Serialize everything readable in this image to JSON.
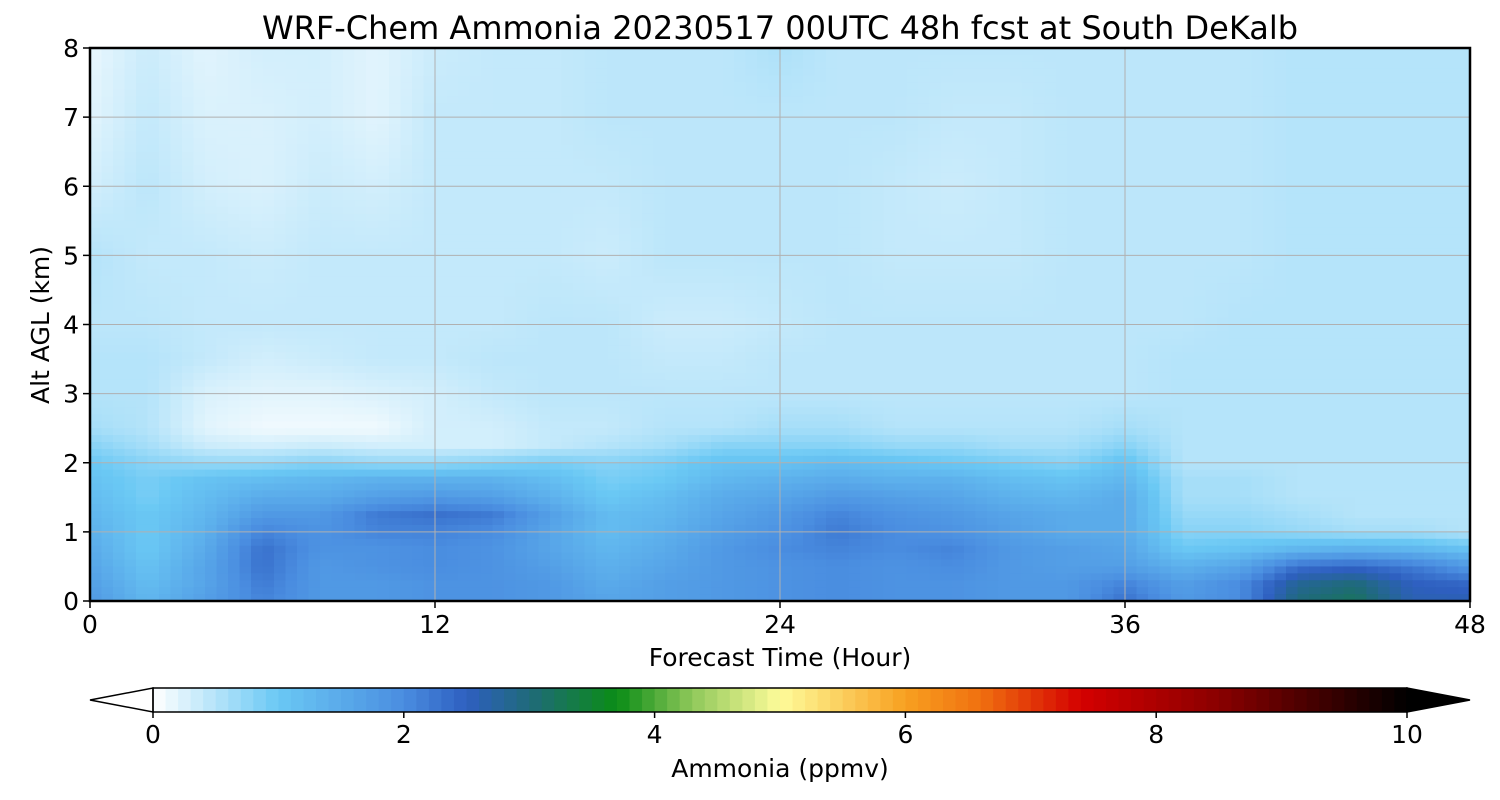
{
  "chart_data": {
    "type": "heatmap",
    "title": "WRF-Chem Ammonia  20230517 00UTC 48h fcst at South DeKalb",
    "xlabel": "Forecast Time (Hour)",
    "ylabel": "Alt AGL (km)",
    "xlim": [
      0,
      48
    ],
    "ylim": [
      0,
      8
    ],
    "x_ticks": [
      "0",
      "12",
      "24",
      "36",
      "48"
    ],
    "y_ticks": [
      "0",
      "1",
      "2",
      "3",
      "4",
      "5",
      "6",
      "7",
      "8"
    ],
    "grid": true,
    "colorbar": {
      "label": "Ammonia  (ppmv)",
      "range": [
        0,
        10
      ],
      "extend": "both",
      "ticks": [
        "0",
        "2",
        "4",
        "6",
        "8",
        "10"
      ],
      "color_stops": [
        {
          "v": 0.0,
          "c": "#ffffff"
        },
        {
          "v": 1.0,
          "c": "#6ac8f4"
        },
        {
          "v": 2.0,
          "c": "#4a8de0"
        },
        {
          "v": 2.5,
          "c": "#2e5fc0"
        },
        {
          "v": 3.0,
          "c": "#1f6a7a"
        },
        {
          "v": 3.7,
          "c": "#0a8c16"
        },
        {
          "v": 4.3,
          "c": "#8fc85a"
        },
        {
          "v": 5.0,
          "c": "#fefc9a"
        },
        {
          "v": 6.0,
          "c": "#f8a020"
        },
        {
          "v": 6.6,
          "c": "#f07010"
        },
        {
          "v": 7.4,
          "c": "#d40000"
        },
        {
          "v": 8.5,
          "c": "#8a0000"
        },
        {
          "v": 10.0,
          "c": "#000000"
        }
      ]
    },
    "x": [
      0,
      2,
      4,
      6,
      8,
      10,
      12,
      14,
      16,
      18,
      20,
      22,
      24,
      26,
      28,
      30,
      32,
      34,
      36,
      38,
      40,
      42,
      44,
      46,
      48
    ],
    "y": [
      0,
      0.25,
      0.5,
      0.75,
      1,
      1.25,
      1.5,
      1.75,
      2,
      2.25,
      2.5,
      3,
      3.5,
      4,
      5,
      6,
      7,
      8
    ],
    "z": [
      [
        1.8,
        1.3,
        1.7,
        2.1,
        1.8,
        1.8,
        1.9,
        1.9,
        1.8,
        1.6,
        1.7,
        1.8,
        1.9,
        2.0,
        1.9,
        1.9,
        1.8,
        1.8,
        2.3,
        1.8,
        2.0,
        3.0,
        3.2,
        2.6,
        2.6
      ],
      [
        1.7,
        1.2,
        1.6,
        2.2,
        1.8,
        1.8,
        1.9,
        1.9,
        1.8,
        1.5,
        1.7,
        1.8,
        1.9,
        2.0,
        1.9,
        1.9,
        1.8,
        1.8,
        2.1,
        1.7,
        2.0,
        2.8,
        3.0,
        2.5,
        2.4
      ],
      [
        1.6,
        1.1,
        1.6,
        2.3,
        1.8,
        1.9,
        2.0,
        1.9,
        1.7,
        1.4,
        1.6,
        1.8,
        1.9,
        2.0,
        1.9,
        2.0,
        1.8,
        1.7,
        1.7,
        1.4,
        1.6,
        2.3,
        2.4,
        2.2,
        1.8
      ],
      [
        1.5,
        1.0,
        1.5,
        2.3,
        1.9,
        1.9,
        2.0,
        1.9,
        1.6,
        1.3,
        1.5,
        1.8,
        2.0,
        2.1,
        2.0,
        2.1,
        1.8,
        1.7,
        1.6,
        1.0,
        1.1,
        1.3,
        1.4,
        1.3,
        1.1
      ],
      [
        1.4,
        1.0,
        1.4,
        2.1,
        1.9,
        2.1,
        2.1,
        2.0,
        1.6,
        1.2,
        1.4,
        1.7,
        1.9,
        2.2,
        2.0,
        1.9,
        1.7,
        1.5,
        1.5,
        0.8,
        0.8,
        0.7,
        0.6,
        0.6,
        0.5
      ],
      [
        1.3,
        1.0,
        1.3,
        1.8,
        1.8,
        2.2,
        2.3,
        2.2,
        1.7,
        1.2,
        1.3,
        1.6,
        1.8,
        2.1,
        1.9,
        1.8,
        1.6,
        1.5,
        1.5,
        0.7,
        0.7,
        0.6,
        0.5,
        0.5,
        0.5
      ],
      [
        1.2,
        0.9,
        1.2,
        1.5,
        1.5,
        1.7,
        1.8,
        1.7,
        1.4,
        1.0,
        1.2,
        1.5,
        1.6,
        1.8,
        1.7,
        1.6,
        1.4,
        1.3,
        1.5,
        0.6,
        0.6,
        0.5,
        0.5,
        0.5,
        0.5
      ],
      [
        1.1,
        0.9,
        1.1,
        1.2,
        1.3,
        1.4,
        1.4,
        1.4,
        1.2,
        0.9,
        1.0,
        1.3,
        1.4,
        1.5,
        1.4,
        1.4,
        1.2,
        1.1,
        1.3,
        0.6,
        0.6,
        0.5,
        0.5,
        0.5,
        0.5
      ],
      [
        1.0,
        0.8,
        0.7,
        0.7,
        0.8,
        0.7,
        0.7,
        0.8,
        0.9,
        0.8,
        0.9,
        1.1,
        1.1,
        1.2,
        1.1,
        1.0,
        0.9,
        0.8,
        1.1,
        0.5,
        0.5,
        0.5,
        0.5,
        0.5,
        0.5
      ],
      [
        0.8,
        0.6,
        0.35,
        0.3,
        0.35,
        0.3,
        0.3,
        0.3,
        0.4,
        0.5,
        0.6,
        0.8,
        0.8,
        0.8,
        0.7,
        0.7,
        0.6,
        0.6,
        0.8,
        0.5,
        0.5,
        0.5,
        0.5,
        0.5,
        0.5
      ],
      [
        0.6,
        0.5,
        0.2,
        0.1,
        0.1,
        0.1,
        0.3,
        0.3,
        0.4,
        0.4,
        0.5,
        0.5,
        0.6,
        0.6,
        0.5,
        0.5,
        0.5,
        0.5,
        0.6,
        0.5,
        0.5,
        0.5,
        0.5,
        0.5,
        0.5
      ],
      [
        0.5,
        0.5,
        0.25,
        0.2,
        0.2,
        0.25,
        0.3,
        0.4,
        0.45,
        0.45,
        0.45,
        0.45,
        0.45,
        0.45,
        0.45,
        0.45,
        0.45,
        0.45,
        0.45,
        0.5,
        0.5,
        0.5,
        0.5,
        0.5,
        0.5
      ],
      [
        0.5,
        0.5,
        0.4,
        0.3,
        0.35,
        0.4,
        0.4,
        0.45,
        0.45,
        0.45,
        0.4,
        0.4,
        0.45,
        0.45,
        0.45,
        0.45,
        0.45,
        0.45,
        0.45,
        0.5,
        0.5,
        0.5,
        0.5,
        0.5,
        0.5
      ],
      [
        0.45,
        0.45,
        0.4,
        0.4,
        0.4,
        0.4,
        0.4,
        0.4,
        0.45,
        0.45,
        0.35,
        0.35,
        0.4,
        0.45,
        0.45,
        0.45,
        0.45,
        0.45,
        0.45,
        0.45,
        0.5,
        0.5,
        0.5,
        0.5,
        0.5
      ],
      [
        0.5,
        0.4,
        0.4,
        0.35,
        0.4,
        0.4,
        0.4,
        0.4,
        0.4,
        0.35,
        0.45,
        0.45,
        0.45,
        0.45,
        0.4,
        0.4,
        0.4,
        0.45,
        0.45,
        0.45,
        0.45,
        0.5,
        0.5,
        0.5,
        0.5
      ],
      [
        0.3,
        0.45,
        0.3,
        0.25,
        0.35,
        0.3,
        0.4,
        0.4,
        0.4,
        0.4,
        0.45,
        0.45,
        0.45,
        0.45,
        0.4,
        0.35,
        0.4,
        0.45,
        0.45,
        0.45,
        0.45,
        0.5,
        0.5,
        0.5,
        0.5
      ],
      [
        0.2,
        0.4,
        0.25,
        0.25,
        0.3,
        0.2,
        0.4,
        0.4,
        0.4,
        0.45,
        0.45,
        0.45,
        0.45,
        0.45,
        0.45,
        0.4,
        0.4,
        0.45,
        0.45,
        0.45,
        0.45,
        0.5,
        0.5,
        0.5,
        0.5
      ],
      [
        0.15,
        0.35,
        0.2,
        0.3,
        0.3,
        0.2,
        0.35,
        0.4,
        0.4,
        0.45,
        0.45,
        0.45,
        0.55,
        0.45,
        0.45,
        0.45,
        0.45,
        0.45,
        0.45,
        0.45,
        0.45,
        0.5,
        0.5,
        0.5,
        0.5
      ]
    ]
  }
}
